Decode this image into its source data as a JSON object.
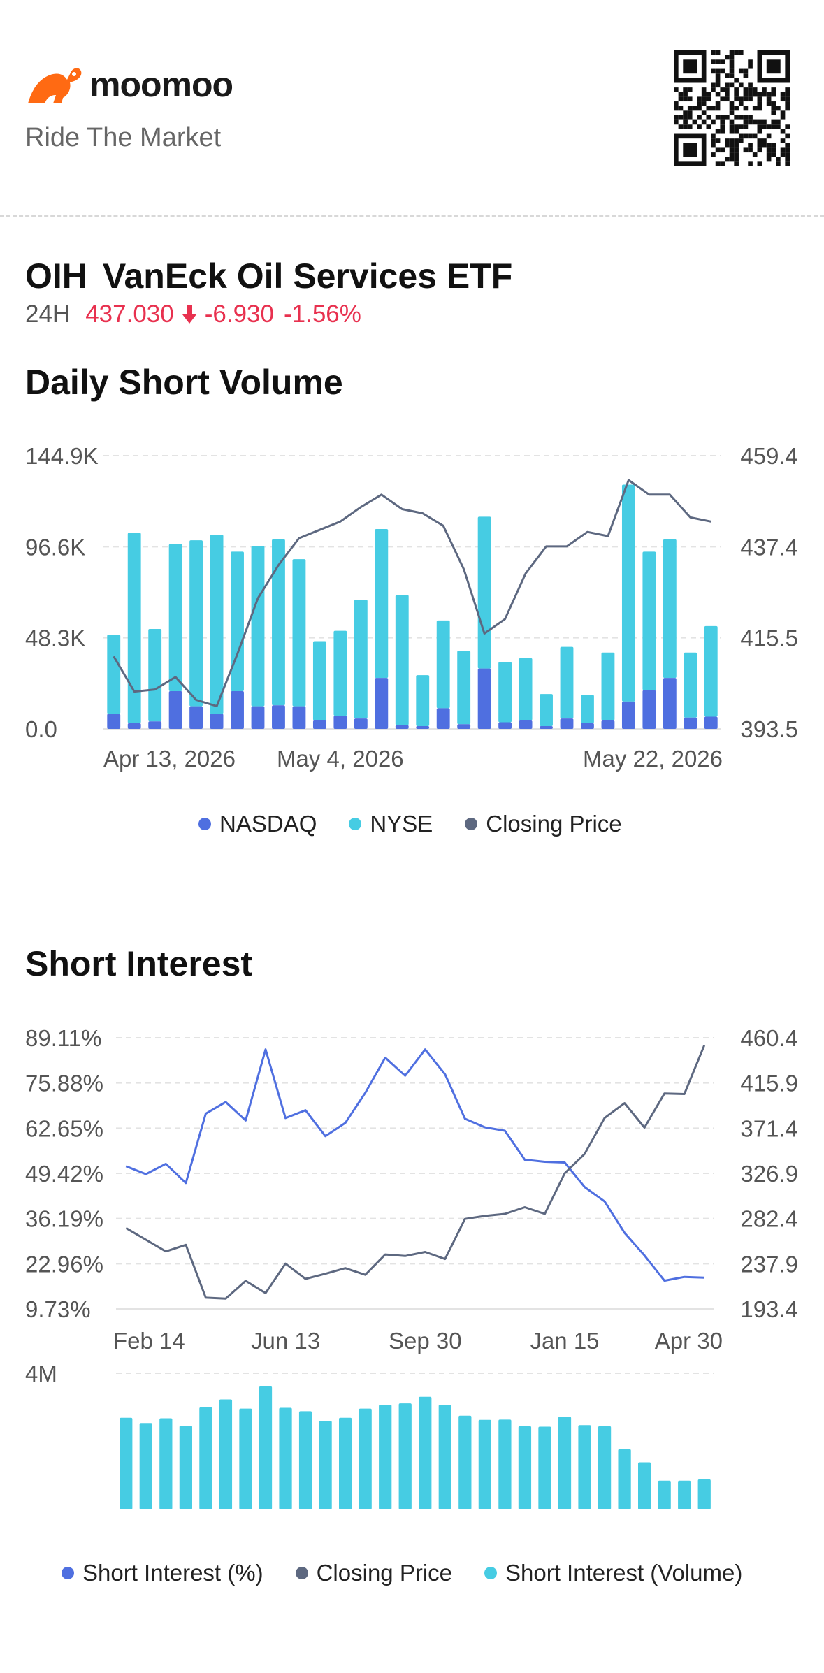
{
  "brand": {
    "name": "moomoo",
    "tagline": "Ride The Market",
    "logo_icon": "moomoo-bull-icon",
    "qr_icon": "qr-code-icon"
  },
  "security": {
    "ticker": "OIH",
    "name": "VanEck Oil Services ETF",
    "session": "24H",
    "price": "437.030",
    "change": "-6.930",
    "change_pct": "-1.56%",
    "direction_icon": "arrow-down-icon",
    "negative_color": "#e8314f"
  },
  "daily_short_volume": {
    "section_title": "Daily Short Volume",
    "legend": [
      {
        "label": "NASDAQ",
        "color": "#4f6fe0"
      },
      {
        "label": "NYSE",
        "color": "#46cce3"
      },
      {
        "label": "Closing Price",
        "color": "#5d6880"
      }
    ]
  },
  "short_interest": {
    "section_title": "Short Interest",
    "legend": [
      {
        "label": "Short Interest (%)",
        "color": "#4f6fe0"
      },
      {
        "label": "Closing Price",
        "color": "#5d6880"
      },
      {
        "label": "Short Interest (Volume)",
        "color": "#46cce3"
      }
    ]
  },
  "chart_data": [
    {
      "type": "bar",
      "title": "Daily Short Volume",
      "stacked": true,
      "categories": [
        "Apr 13, 2026",
        "",
        "",
        "",
        "",
        "",
        "",
        "",
        "",
        "",
        "",
        "May 4, 2026",
        "",
        "",
        "",
        "",
        "",
        "",
        "",
        "",
        "",
        "",
        "",
        "",
        "",
        "",
        "",
        "",
        "",
        "May 22, 2026"
      ],
      "x_tick_labels": [
        "Apr 13, 2026",
        "May 4, 2026",
        "May 22, 2026"
      ],
      "series": [
        {
          "name": "NASDAQ",
          "axis": "left",
          "color": "#4f6fe0",
          "values": [
            8000,
            3000,
            4000,
            20000,
            12000,
            8000,
            20000,
            12000,
            12500,
            12000,
            4500,
            7000,
            5500,
            27000,
            2000,
            1500,
            11000,
            2500,
            32000,
            3500,
            4500,
            1500,
            5500,
            3000,
            4500,
            14500,
            20500,
            27000,
            6000,
            6500
          ]
        },
        {
          "name": "NYSE",
          "axis": "left",
          "color": "#46cce3",
          "values": [
            42000,
            101000,
            49000,
            78000,
            88000,
            95000,
            74000,
            85000,
            88000,
            78000,
            42000,
            45000,
            63000,
            79000,
            69000,
            27000,
            46500,
            39000,
            80500,
            32000,
            33000,
            17000,
            38000,
            15000,
            36000,
            115000,
            73500,
            73500,
            34500,
            48000
          ]
        },
        {
          "name": "Closing Price",
          "axis": "right",
          "type": "line",
          "color": "#5d6880",
          "values": [
            411.0,
            402.5,
            403.0,
            406.0,
            400.5,
            399.0,
            411.5,
            425.0,
            433.0,
            439.5,
            441.5,
            443.5,
            447.0,
            450.0,
            446.5,
            445.5,
            442.5,
            432.0,
            416.5,
            420.0,
            431.0,
            437.5,
            437.5,
            441.0,
            440.0,
            453.5,
            450.0,
            450.0,
            444.5,
            443.5
          ]
        }
      ],
      "ylim_left": [
        0,
        144900
      ],
      "y_ticks_left": [
        "0.0",
        "48.3K",
        "96.6K",
        "144.9K"
      ],
      "ylim_right": [
        393.5,
        459.4
      ],
      "y_ticks_right": [
        "393.5",
        "415.5",
        "437.4",
        "459.4"
      ],
      "grid": true,
      "legend_position": "bottom"
    },
    {
      "type": "line",
      "title": "Short Interest",
      "categories": [
        "Feb 14",
        "",
        "",
        "",
        "",
        "",
        "",
        "",
        "Jun 13",
        "",
        "",
        "",
        "",
        "",
        "",
        "Sep 30",
        "",
        "",
        "",
        "",
        "",
        "",
        "Jan 15",
        "",
        "",
        "",
        "",
        "",
        "",
        "Apr 30"
      ],
      "x_tick_labels": [
        "Feb 14",
        "Jun 13",
        "Sep 30",
        "Jan 15",
        "Apr 30"
      ],
      "series": [
        {
          "name": "Short Interest (%)",
          "axis": "left",
          "color": "#4f6fe0",
          "values": [
            51.5,
            49.2,
            52.2,
            46.6,
            66.9,
            70.3,
            64.9,
            85.7,
            65.6,
            67.9,
            60.3,
            64.2,
            73.0,
            83.3,
            78.0,
            85.7,
            78.4,
            65.4,
            62.9,
            61.9,
            53.4,
            52.8,
            52.6,
            45.4,
            41.2,
            32.0,
            25.4,
            18.0,
            19.1,
            18.9
          ]
        },
        {
          "name": "Closing Price",
          "axis": "right",
          "color": "#5d6880",
          "values": [
            273.0,
            261.5,
            250.0,
            256.5,
            204.5,
            203.5,
            221.0,
            209.0,
            238.0,
            223.0,
            228.0,
            233.5,
            227.0,
            247.0,
            245.5,
            249.5,
            242.5,
            282.0,
            285.0,
            287.0,
            293.5,
            287.0,
            327.0,
            346.0,
            381.5,
            396.0,
            372.0,
            405.5,
            405.0,
            453.0
          ]
        },
        {
          "name": "Short Interest (Volume)",
          "axis": "volume",
          "type": "bar",
          "color": "#46cce3",
          "values": [
            3500000,
            3300000,
            3480000,
            3200000,
            3900000,
            4200000,
            3850000,
            4700000,
            3880000,
            3750000,
            3380000,
            3500000,
            3850000,
            4000000,
            4050000,
            4300000,
            4000000,
            3580000,
            3420000,
            3430000,
            3180000,
            3160000,
            3540000,
            3220000,
            3180000,
            2300000,
            1800000,
            1100000,
            1100000,
            1150000
          ]
        }
      ],
      "ylim_left": [
        9.73,
        89.11
      ],
      "y_ticks_left": [
        "9.73%",
        "22.96%",
        "36.19%",
        "49.42%",
        "62.65%",
        "75.88%",
        "89.11%"
      ],
      "ylim_right": [
        193.4,
        460.4
      ],
      "y_ticks_right": [
        "193.4",
        "237.9",
        "282.4",
        "326.9",
        "371.4",
        "415.9",
        "460.4"
      ],
      "volume_max_label": "4M",
      "volume_ylim": [
        0,
        5200000
      ],
      "grid": true,
      "legend_position": "bottom"
    }
  ]
}
